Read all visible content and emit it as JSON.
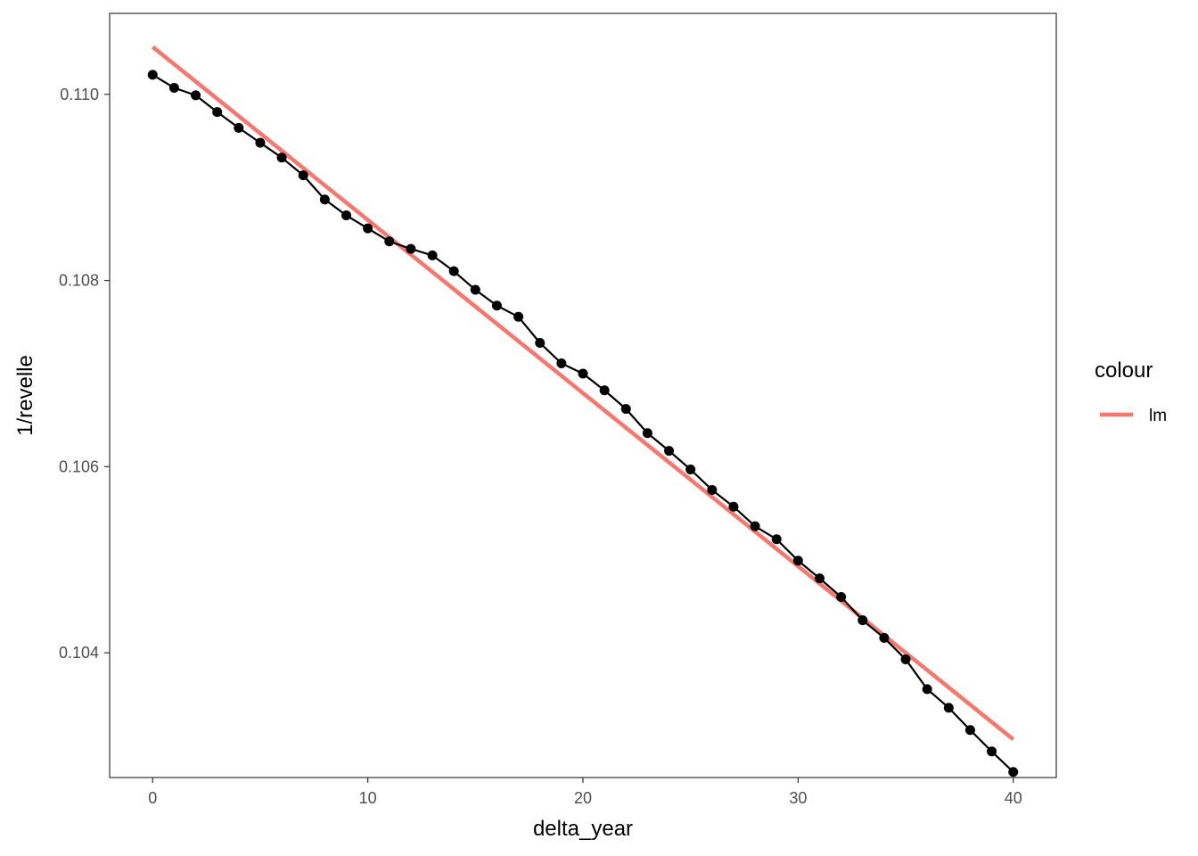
{
  "chart_data": {
    "type": "line",
    "title": "",
    "xlabel": "delta_year",
    "ylabel": "1/revelle",
    "xlim": [
      -2,
      42
    ],
    "ylim": [
      0.10266,
      0.11087
    ],
    "x_ticks": [
      0,
      10,
      20,
      30,
      40
    ],
    "x_tick_labels": [
      "0",
      "10",
      "20",
      "30",
      "40"
    ],
    "y_ticks": [
      0.104,
      0.106,
      0.108,
      0.11
    ],
    "y_tick_labels": [
      "0.104",
      "0.106",
      "0.108",
      "0.110"
    ],
    "grid": false,
    "legend": {
      "title": "colour",
      "position": "right",
      "entries": [
        {
          "label": "lm",
          "color": "#F8766D"
        }
      ]
    },
    "series": [
      {
        "type": "line+points",
        "color": "#000000",
        "x": [
          0,
          1,
          2,
          3,
          4,
          5,
          6,
          7,
          8,
          9,
          10,
          11,
          12,
          13,
          14,
          15,
          16,
          17,
          18,
          19,
          20,
          21,
          22,
          23,
          24,
          25,
          26,
          27,
          28,
          29,
          30,
          31,
          32,
          33,
          34,
          35,
          36,
          37,
          38,
          39,
          40
        ],
        "y": [
          0.11021,
          0.11007,
          0.10999,
          0.10981,
          0.10964,
          0.10948,
          0.10932,
          0.10913,
          0.10887,
          0.1087,
          0.10856,
          0.10842,
          0.10834,
          0.10827,
          0.1081,
          0.1079,
          0.10773,
          0.10761,
          0.10733,
          0.10711,
          0.107,
          0.10682,
          0.10662,
          0.10636,
          0.10617,
          0.10597,
          0.10575,
          0.10557,
          0.10536,
          0.10522,
          0.10499,
          0.1048,
          0.1046,
          0.10435,
          0.10416,
          0.10393,
          0.10361,
          0.10341,
          0.10317,
          0.10294,
          0.10272
        ]
      },
      {
        "name": "lm",
        "type": "line",
        "color": "#F8766D",
        "x": [
          0,
          40
        ],
        "y": [
          0.11051,
          0.10307
        ]
      }
    ]
  }
}
